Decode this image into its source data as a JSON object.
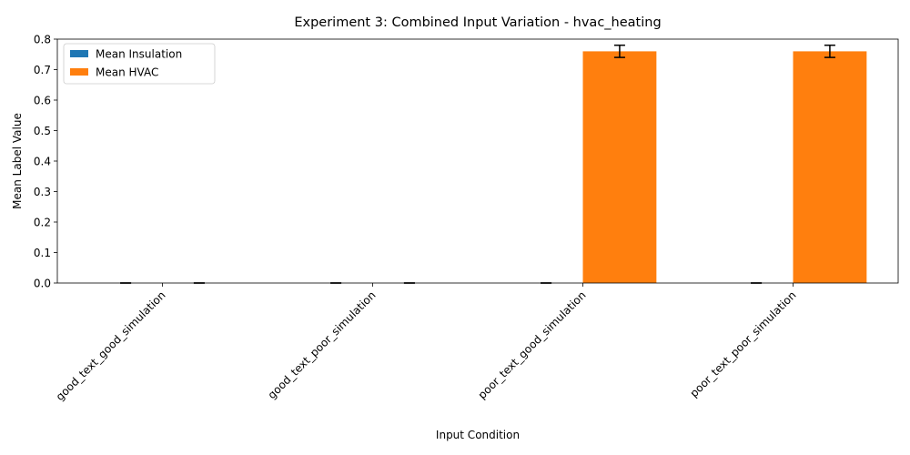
{
  "chart_data": {
    "type": "bar",
    "title": "Experiment 3: Combined Input Variation - hvac_heating",
    "xlabel": "Input Condition",
    "ylabel": "Mean Label Value",
    "categories": [
      "good_text_good_simulation",
      "good_text_poor_simulation",
      "poor_text_good_simulation",
      "poor_text_poor_simulation"
    ],
    "series": [
      {
        "name": "Mean Insulation",
        "color": "#1f77b4",
        "values": [
          0,
          0,
          0,
          0
        ],
        "errors": [
          0,
          0,
          0,
          0
        ]
      },
      {
        "name": "Mean HVAC",
        "color": "#ff7f0e",
        "values": [
          0,
          0,
          0.76,
          0.76
        ],
        "errors": [
          0,
          0,
          0.02,
          0.02
        ]
      }
    ],
    "ylim": [
      0,
      0.8
    ],
    "yticks": [
      "0.0",
      "0.1",
      "0.2",
      "0.3",
      "0.4",
      "0.5",
      "0.6",
      "0.7",
      "0.8"
    ],
    "grid": false,
    "legend_position": "upper-left"
  }
}
